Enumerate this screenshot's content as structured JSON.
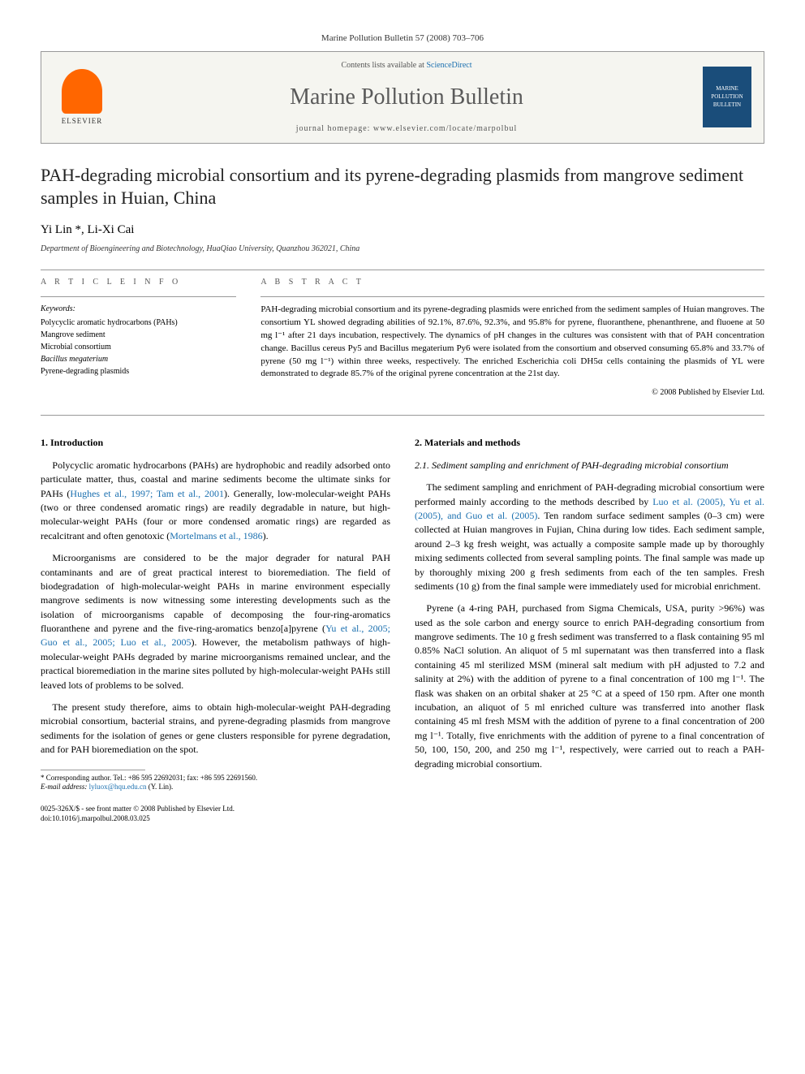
{
  "journal_header_line": "Marine Pollution Bulletin 57 (2008) 703–706",
  "header": {
    "elsevier_label": "ELSEVIER",
    "contents_prefix": "Contents lists available at ",
    "contents_link": "ScienceDirect",
    "journal_name": "Marine Pollution Bulletin",
    "homepage_label": "journal homepage: www.elsevier.com/locate/marpolbul",
    "cover_text": "MARINE POLLUTION BULLETIN"
  },
  "title": "PAH-degrading microbial consortium and its pyrene-degrading plasmids from mangrove sediment samples in Huian, China",
  "authors": "Yi Lin *, Li-Xi Cai",
  "affiliation": "Department of Bioengineering and Biotechnology, HuaQiao University, Quanzhou 362021, China",
  "article_info": {
    "heading": "A R T I C L E   I N F O",
    "keywords_label": "Keywords:",
    "keywords": [
      "Polycyclic aromatic hydrocarbons (PAHs)",
      "Mangrove sediment",
      "Microbial consortium",
      "Bacillus megaterium",
      "Pyrene-degrading plasmids"
    ]
  },
  "abstract": {
    "heading": "A B S T R A C T",
    "text": "PAH-degrading microbial consortium and its pyrene-degrading plasmids were enriched from the sediment samples of Huian mangroves. The consortium YL showed degrading abilities of 92.1%, 87.6%, 92.3%, and 95.8% for pyrene, fluoranthene, phenanthrene, and fluoene at 50 mg l⁻¹ after 21 days incubation, respectively. The dynamics of pH changes in the cultures was consistent with that of PAH concentration change. Bacillus cereus Py5 and Bacillus megaterium Py6 were isolated from the consortium and observed consuming 65.8% and 33.7% of pyrene (50 mg l⁻¹) within three weeks, respectively. The enriched Escherichia coli DH5α cells containing the plasmids of YL were demonstrated to degrade 85.7% of the original pyrene concentration at the 21st day.",
    "copyright": "© 2008 Published by Elsevier Ltd."
  },
  "body": {
    "col1": {
      "sec1_heading": "1. Introduction",
      "p1a": "Polycyclic aromatic hydrocarbons (PAHs) are hydrophobic and readily adsorbed onto particulate matter, thus, coastal and marine sediments become the ultimate sinks for PAHs (",
      "p1_ref1": "Hughes et al., 1997; Tam et al., 2001",
      "p1b": "). Generally, low-molecular-weight PAHs (two or three condensed aromatic rings) are readily degradable in nature, but high-molecular-weight PAHs (four or more condensed aromatic rings) are regarded as recalcitrant and often genotoxic (",
      "p1_ref2": "Mortelmans et al., 1986",
      "p1c": ").",
      "p2a": "Microorganisms are considered to be the major degrader for natural PAH contaminants and are of great practical interest to bioremediation. The field of biodegradation of high-molecular-weight PAHs in marine environment especially mangrove sediments is now witnessing some interesting developments such as the isolation of microorganisms capable of decomposing the four-ring-aromatics fluoranthene and pyrene and the five-ring-aromatics benzo[a]pyrene (",
      "p2_ref1": "Yu et al., 2005; Guo et al., 2005; Luo et al., 2005",
      "p2b": "). However, the metabolism pathways of high-molecular-weight PAHs degraded by marine microorganisms remained unclear, and the practical bioremediation in the marine sites polluted by high-molecular-weight PAHs still leaved lots of problems to be solved.",
      "p3": "The present study therefore, aims to obtain high-molecular-weight PAH-degrading microbial consortium, bacterial strains, and pyrene-degrading plasmids from mangrove sediments for the isolation of genes or gene clusters responsible for pyrene degradation, and for PAH bioremediation on the spot."
    },
    "col2": {
      "sec2_heading": "2. Materials and methods",
      "sec21_heading": "2.1. Sediment sampling and enrichment of PAH-degrading microbial consortium",
      "p1a": "The sediment sampling and enrichment of PAH-degrading microbial consortium were performed mainly according to the methods described by ",
      "p1_ref1": "Luo et al. (2005), Yu et al. (2005), and Guo et al. (2005)",
      "p1b": ". Ten random surface sediment samples (0–3 cm) were collected at Huian mangroves in Fujian, China during low tides. Each sediment sample, around 2–3 kg fresh weight, was actually a composite sample made up by thoroughly mixing sediments collected from several sampling points. The final sample was made up by thoroughly mixing 200 g fresh sediments from each of the ten samples. Fresh sediments (10 g) from the final sample were immediately used for microbial enrichment.",
      "p2": "Pyrene (a 4-ring PAH, purchased from Sigma Chemicals, USA, purity >96%) was used as the sole carbon and energy source to enrich PAH-degrading consortium from mangrove sediments. The 10 g fresh sediment was transferred to a flask containing 95 ml 0.85% NaCl solution. An aliquot of 5 ml supernatant was then transferred into a flask containing 45 ml sterilized MSM (mineral salt medium with pH adjusted to 7.2 and salinity at 2%) with the addition of pyrene to a final concentration of 100 mg l⁻¹. The flask was shaken on an orbital shaker at 25 °C at a speed of 150 rpm. After one month incubation, an aliquot of 5 ml enriched culture was transferred into another flask containing 45 ml fresh MSM with the addition of pyrene to a final concentration of 200 mg l⁻¹. Totally, five enrichments with the addition of pyrene to a final concentration of 50, 100, 150, 200, and 250 mg l⁻¹, respectively, were carried out to reach a PAH-degrading microbial consortium."
    }
  },
  "footnote": {
    "corr": "* Corresponding author. Tel.: +86 595 22692031; fax: +86 595 22691560.",
    "email_label": "E-mail address:",
    "email": "lyluox@hqu.edu.cn",
    "email_suffix": "(Y. Lin)."
  },
  "bottom": {
    "line1": "0025-326X/$ - see front matter © 2008 Published by Elsevier Ltd.",
    "line2": "doi:10.1016/j.marpolbul.2008.03.025"
  },
  "colors": {
    "link": "#1a6faf",
    "elsevier_orange": "#ff6600",
    "cover_blue": "#1a4d7a",
    "rule": "#999999",
    "text": "#000000",
    "header_bg": "#f5f5f0"
  }
}
